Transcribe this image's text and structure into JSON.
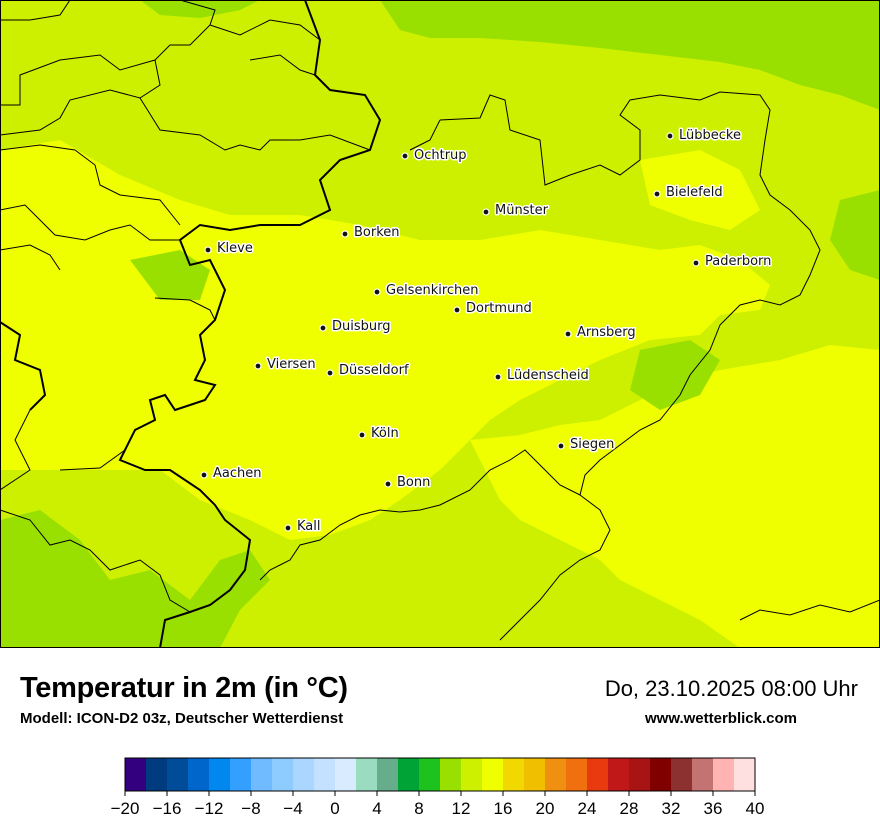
{
  "header": {
    "title": "Temperatur in 2m (in °C)",
    "subtitle": "Modell: ICON-D2 03z, Deutscher Wetterdienst",
    "datetime": "Do, 23.10.2025 08:00 Uhr",
    "website": "www.wetterblick.com"
  },
  "cities": [
    {
      "name": "Lübbecke"
    },
    {
      "name": "Ochtrup"
    },
    {
      "name": "Bielefeld"
    },
    {
      "name": "Münster"
    },
    {
      "name": "Borken"
    },
    {
      "name": "Kleve"
    },
    {
      "name": "Paderborn"
    },
    {
      "name": "Gelsenkirchen"
    },
    {
      "name": "Dortmund"
    },
    {
      "name": "Duisburg"
    },
    {
      "name": "Arnsberg"
    },
    {
      "name": "Viersen"
    },
    {
      "name": "Düsseldorf"
    },
    {
      "name": "Lüdenscheid"
    },
    {
      "name": "Köln"
    },
    {
      "name": "Siegen"
    },
    {
      "name": "Aachen"
    },
    {
      "name": "Bonn"
    },
    {
      "name": "Kall"
    }
  ],
  "colorbar": {
    "min": -20,
    "max": 40,
    "step": 2,
    "tick_labels": [
      "−20",
      "−16",
      "−12",
      "−8",
      "−4",
      "0",
      "4",
      "8",
      "12",
      "16",
      "20",
      "24",
      "28",
      "32",
      "36",
      "40"
    ],
    "colors": [
      "#33007f",
      "#003a7f",
      "#004c99",
      "#0066cc",
      "#0088ee",
      "#33a0ff",
      "#70bbff",
      "#8ecbff",
      "#aad6ff",
      "#c4e2ff",
      "#d8ebff",
      "#9adcc0",
      "#66ad8c",
      "#00a336",
      "#1ec21e",
      "#99e000",
      "#ccf000",
      "#f0ff00",
      "#f0d800",
      "#f0c000",
      "#f09010",
      "#f07010",
      "#e83a0e",
      "#c01818",
      "#a81414",
      "#800000",
      "#8c3030",
      "#c47373",
      "#ffb3b3",
      "#ffe0e0"
    ]
  },
  "map_colors": {
    "temp_10": "#99e000",
    "temp_12": "#ccf000",
    "temp_14": "#f0ff00",
    "border_country": "#000000",
    "border_region": "#000000"
  }
}
